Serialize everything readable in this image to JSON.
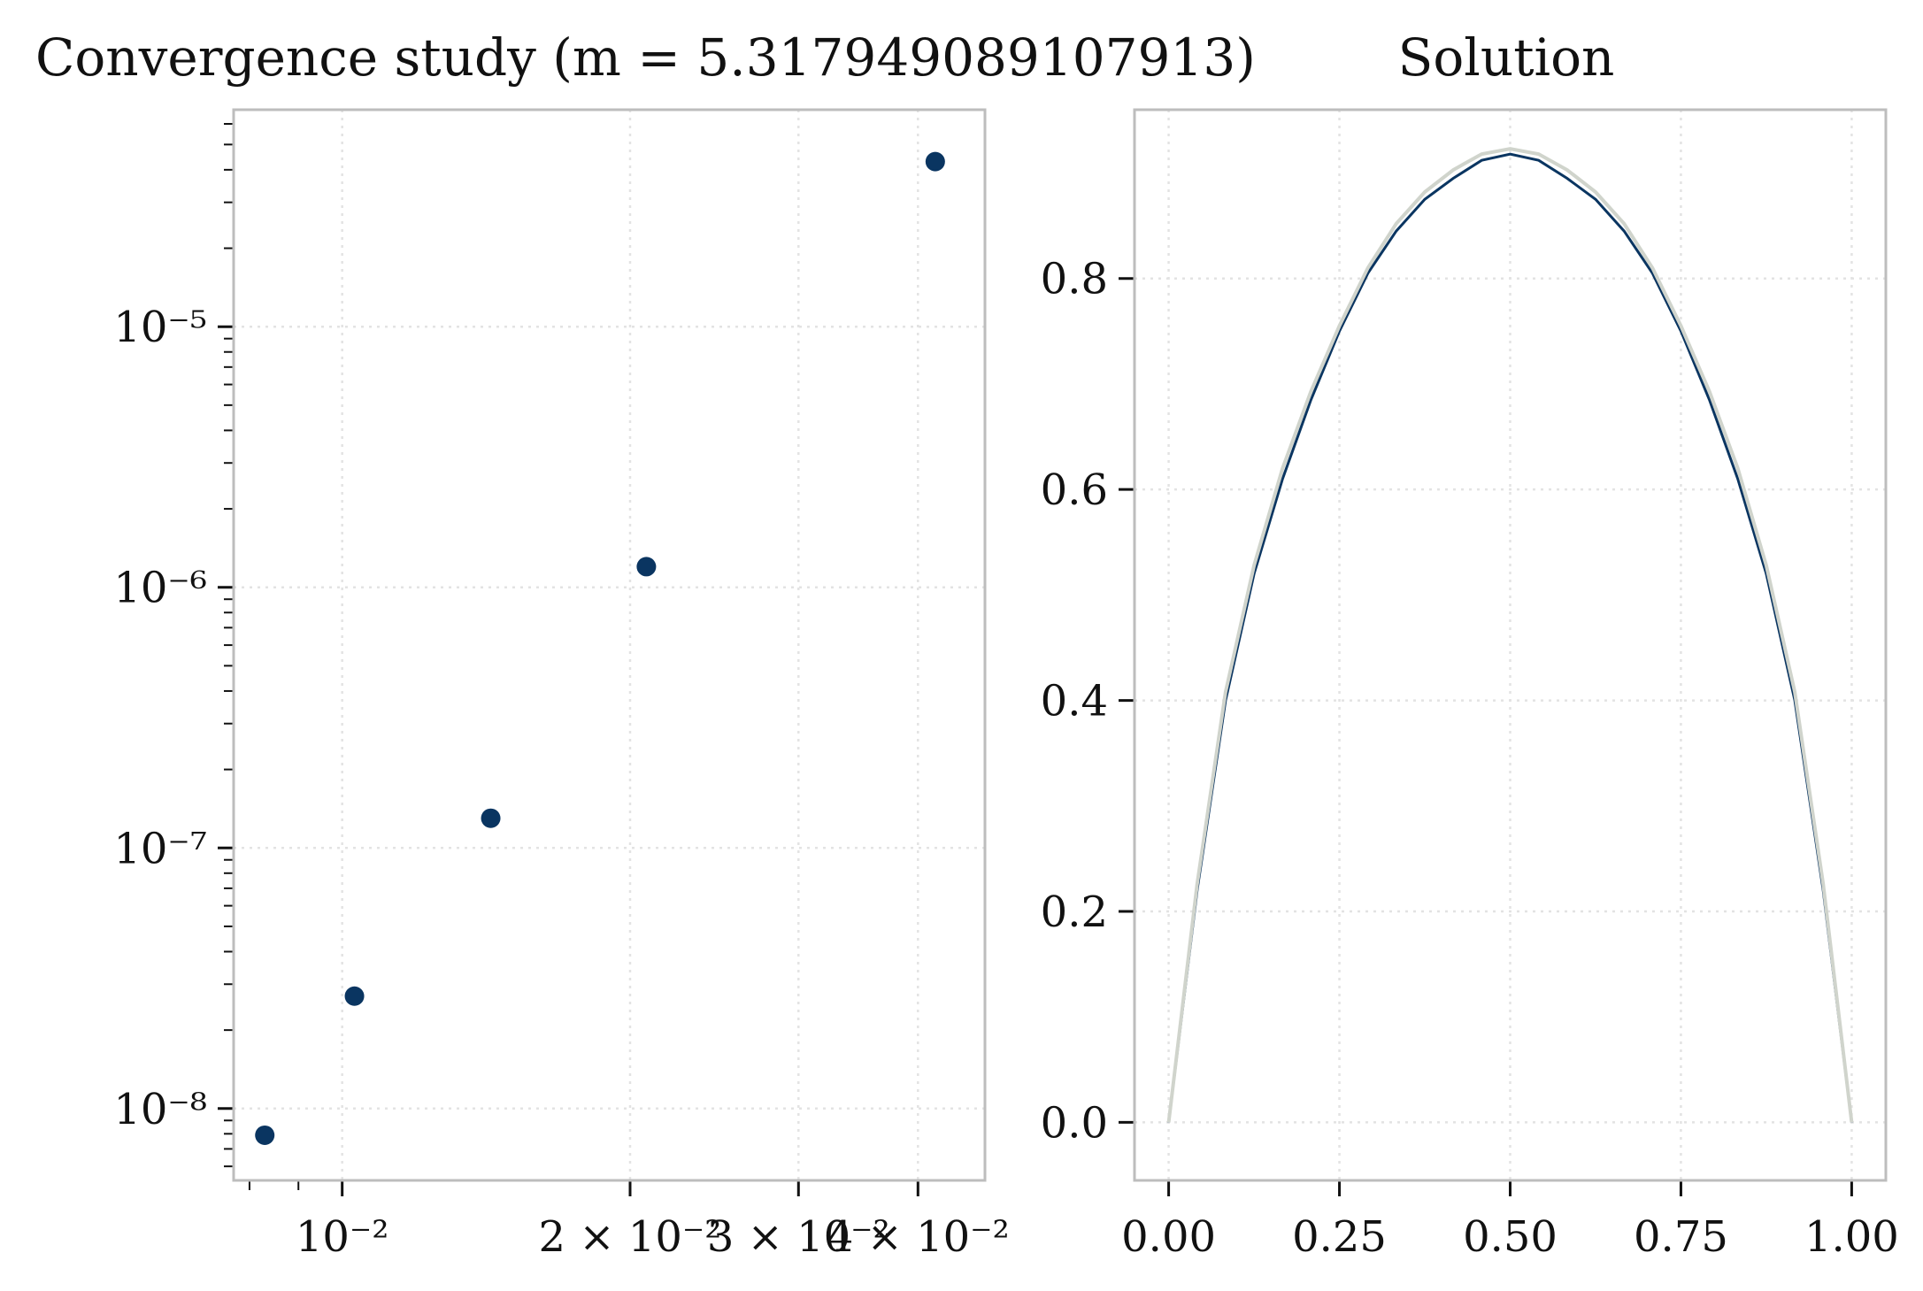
{
  "chart_data": [
    {
      "type": "scatter",
      "title": "Convergence study (m = 5.317949089107913)",
      "xlabel": "",
      "ylabel": "",
      "xscale": "log",
      "yscale": "log",
      "xlim": [
        0.0077,
        0.047
      ],
      "ylim": [
        5.3e-09,
        6.8e-05
      ],
      "grid": true,
      "x_ticks": [
        {
          "value": 0.01,
          "label": "10⁻²"
        },
        {
          "value": 0.02,
          "label": "2 × 10⁻²"
        },
        {
          "value": 0.03,
          "label": "3 × 10⁻²"
        },
        {
          "value": 0.04,
          "label": "4 × 10⁻²"
        }
      ],
      "y_ticks": [
        {
          "value": 1e-08,
          "label": "10⁻⁸"
        },
        {
          "value": 1e-07,
          "label": "10⁻⁷"
        },
        {
          "value": 1e-06,
          "label": "10⁻⁶"
        },
        {
          "value": 1e-05,
          "label": "10⁻⁵"
        }
      ],
      "x": [
        0.0083,
        0.0103,
        0.0143,
        0.0208,
        0.0417
      ],
      "y": [
        7.9e-09,
        2.7e-08,
        1.3e-07,
        1.2e-06,
        4.3e-05
      ],
      "color": "#0a3561"
    },
    {
      "type": "line",
      "title": "Solution",
      "xlabel": "",
      "ylabel": "",
      "xlim": [
        -0.05,
        1.05
      ],
      "ylim": [
        -0.055,
        0.96
      ],
      "grid": true,
      "x_ticks": [
        {
          "value": 0.0,
          "label": "0.00"
        },
        {
          "value": 0.25,
          "label": "0.25"
        },
        {
          "value": 0.5,
          "label": "0.50"
        },
        {
          "value": 0.75,
          "label": "0.75"
        },
        {
          "value": 1.0,
          "label": "1.00"
        }
      ],
      "y_ticks": [
        {
          "value": 0.0,
          "label": "0.0"
        },
        {
          "value": 0.2,
          "label": "0.2"
        },
        {
          "value": 0.4,
          "label": "0.4"
        },
        {
          "value": 0.6,
          "label": "0.6"
        },
        {
          "value": 0.8,
          "label": "0.8"
        }
      ],
      "series": [
        {
          "color": "#0a3561",
          "x": [
            0,
            0.0417,
            0.0833,
            0.125,
            0.1667,
            0.2083,
            0.25,
            0.2917,
            0.3333,
            0.375,
            0.4167,
            0.4583,
            0.5,
            0.5417,
            0.5833,
            0.625,
            0.6667,
            0.7083,
            0.75,
            0.7917,
            0.8333,
            0.875,
            0.9167,
            0.9583,
            1
          ],
          "y": [
            0,
            0.22,
            0.4,
            0.52,
            0.61,
            0.685,
            0.75,
            0.805,
            0.845,
            0.875,
            0.895,
            0.912,
            0.918,
            0.912,
            0.895,
            0.875,
            0.845,
            0.805,
            0.75,
            0.685,
            0.61,
            0.52,
            0.4,
            0.22,
            0
          ]
        },
        {
          "color": "#d0d4cc",
          "x": [
            0,
            0.0417,
            0.0833,
            0.125,
            0.1667,
            0.2083,
            0.25,
            0.2917,
            0.3333,
            0.375,
            0.4167,
            0.4583,
            0.5,
            0.5417,
            0.5833,
            0.625,
            0.6667,
            0.7083,
            0.75,
            0.7917,
            0.8333,
            0.875,
            0.9167,
            0.9583,
            1
          ],
          "y": [
            0,
            0.226,
            0.408,
            0.528,
            0.62,
            0.693,
            0.755,
            0.81,
            0.852,
            0.882,
            0.903,
            0.918,
            0.923,
            0.918,
            0.903,
            0.882,
            0.852,
            0.81,
            0.755,
            0.693,
            0.62,
            0.528,
            0.408,
            0.226,
            0
          ]
        }
      ]
    }
  ]
}
